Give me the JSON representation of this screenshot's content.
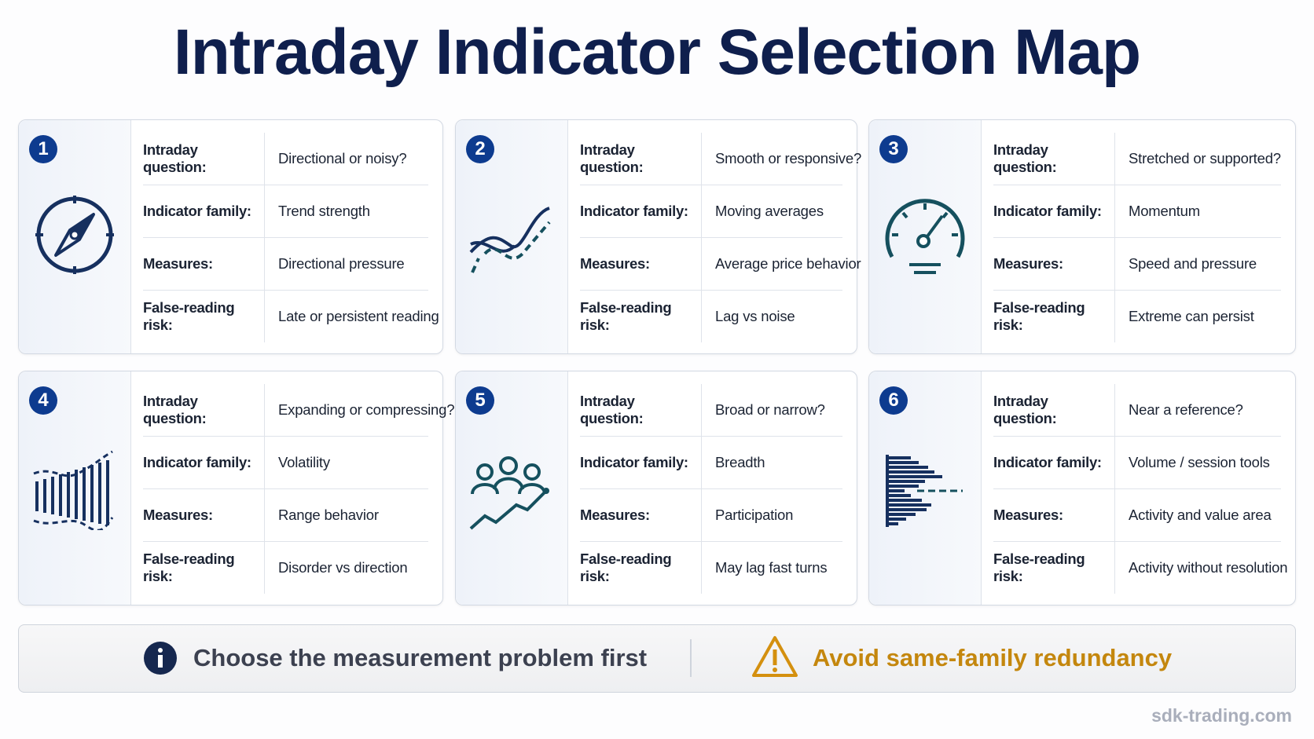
{
  "header": {
    "title": "Intraday Indicator Selection Map"
  },
  "cards": [
    {
      "number": "1",
      "rows": [
        {
          "label": "Intraday question:",
          "value": "Directional or noisy?"
        },
        {
          "label": "Indicator family:",
          "value": "Trend strength"
        },
        {
          "label": "Measures:",
          "value": "Directional pressure"
        },
        {
          "label": "False-reading risk:",
          "value": "Late or persistent reading"
        }
      ]
    },
    {
      "number": "2",
      "rows": [
        {
          "label": "Intraday question:",
          "value": "Smooth or responsive?"
        },
        {
          "label": "Indicator family:",
          "value": "Moving averages"
        },
        {
          "label": "Measures:",
          "value": "Average price behavior"
        },
        {
          "label": "False-reading risk:",
          "value": "Lag vs noise"
        }
      ]
    },
    {
      "number": "3",
      "rows": [
        {
          "label": "Intraday question:",
          "value": "Stretched or supported?"
        },
        {
          "label": "Indicator family:",
          "value": "Momentum"
        },
        {
          "label": "Measures:",
          "value": "Speed and pressure"
        },
        {
          "label": "False-reading risk:",
          "value": "Extreme can persist"
        }
      ]
    },
    {
      "number": "4",
      "rows": [
        {
          "label": "Intraday question:",
          "value": "Expanding or compressing?"
        },
        {
          "label": "Indicator family:",
          "value": "Volatility"
        },
        {
          "label": "Measures:",
          "value": "Range behavior"
        },
        {
          "label": "False-reading risk:",
          "value": "Disorder vs direction"
        }
      ]
    },
    {
      "number": "5",
      "rows": [
        {
          "label": "Intraday question:",
          "value": "Broad or narrow?"
        },
        {
          "label": "Indicator family:",
          "value": "Breadth"
        },
        {
          "label": "Measures:",
          "value": "Participation"
        },
        {
          "label": "False-reading risk:",
          "value": "May lag fast turns"
        }
      ]
    },
    {
      "number": "6",
      "rows": [
        {
          "label": "Intraday question:",
          "value": "Near a reference?"
        },
        {
          "label": "Indicator family:",
          "value": "Volume / session tools"
        },
        {
          "label": "Measures:",
          "value": "Activity and value area"
        },
        {
          "label": "False-reading risk:",
          "value": "Activity without resolution"
        }
      ]
    }
  ],
  "footer": {
    "tip": "Choose the measurement problem first",
    "warning": "Avoid same-family redundancy",
    "source": "sdk-trading.com"
  }
}
